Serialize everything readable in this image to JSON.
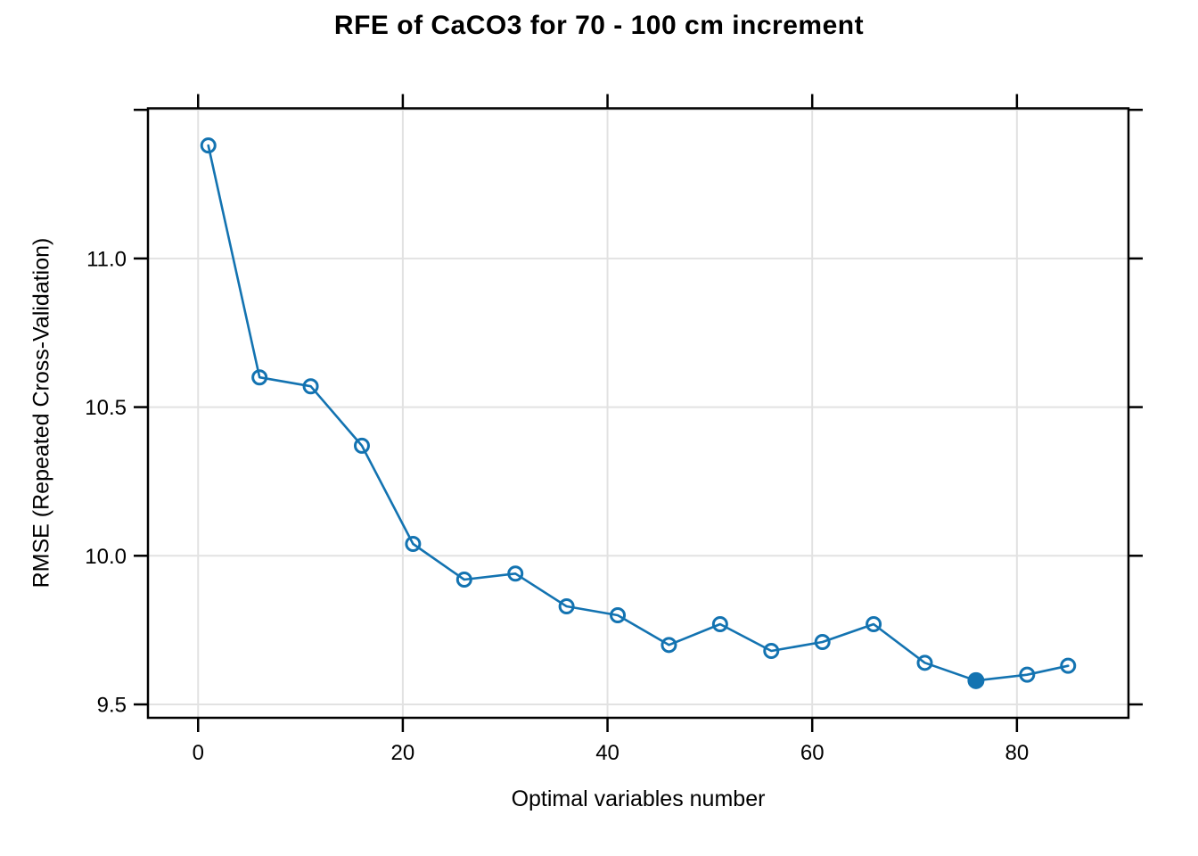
{
  "figure": {
    "background": "#ffffff"
  },
  "chart_data": {
    "type": "line",
    "title": "RFE of CaCO3 for 70 - 100 cm increment",
    "xlabel": "Optimal variables number",
    "ylabel": "RMSE (Repeated Cross-Validation)",
    "series": [
      {
        "name": "RMSE (Repeated Cross-Validation)",
        "x": [
          1,
          6,
          11,
          16,
          21,
          26,
          31,
          36,
          41,
          46,
          51,
          56,
          61,
          66,
          71,
          76,
          81,
          85
        ],
        "y": [
          11.38,
          10.6,
          10.57,
          10.37,
          10.04,
          9.92,
          9.94,
          9.83,
          9.8,
          9.7,
          9.77,
          9.68,
          9.71,
          9.77,
          9.64,
          9.58,
          9.6,
          9.63
        ]
      }
    ],
    "optimal_point": {
      "x": 76,
      "y": 9.58,
      "style": "filled-circle"
    },
    "marker": "open-circle",
    "line_style": "solid",
    "legend": "none",
    "grid": true,
    "xlim": [
      -4.9,
      90.9
    ],
    "ylim": [
      9.455,
      11.505
    ],
    "xticks": [
      {
        "value": 0,
        "label": "0"
      },
      {
        "value": 20,
        "label": "20"
      },
      {
        "value": 40,
        "label": "40"
      },
      {
        "value": 60,
        "label": "60"
      },
      {
        "value": 80,
        "label": "80"
      }
    ],
    "yticks": [
      {
        "value": 9.5,
        "label": "9.5"
      },
      {
        "value": 10.0,
        "label": "10.0"
      },
      {
        "value": 10.5,
        "label": "10.5"
      },
      {
        "value": 11.0,
        "label": "11.0"
      },
      {
        "value": 11.5,
        "label": ""
      }
    ],
    "colors": {
      "line": "#1373b1",
      "marker": "#1373b1",
      "optimal_fill": "#1373b1",
      "grid": "#e2e2e2",
      "axis": "#000000",
      "text": "#000000"
    }
  }
}
